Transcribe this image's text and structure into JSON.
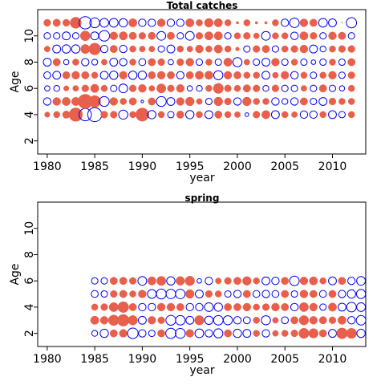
{
  "chart_data": [
    {
      "type": "scatter",
      "subtype": "residual-bubble",
      "title": "Total catches",
      "xlabel": "year",
      "ylabel": "Age",
      "xlim": [
        1979,
        2013.5
      ],
      "ylim": [
        1,
        12
      ],
      "x_ticks": [
        1980,
        1985,
        1990,
        1995,
        2000,
        2005,
        2010
      ],
      "y_ticks": [
        2,
        4,
        6,
        8,
        10
      ],
      "years": [
        1980,
        1981,
        1982,
        1983,
        1984,
        1985,
        1986,
        1987,
        1988,
        1989,
        1990,
        1991,
        1992,
        1993,
        1994,
        1995,
        1996,
        1997,
        1998,
        1999,
        2000,
        2001,
        2002,
        2003,
        2004,
        2005,
        2006,
        2007,
        2008,
        2009,
        2010,
        2011,
        2012
      ],
      "ages": [
        4,
        5,
        6,
        7,
        8,
        9,
        10,
        11
      ],
      "colors": {
        "positive": "#e8604c",
        "negative": "#0000ee"
      },
      "residuals": {
        "4": [
          0.4,
          0.6,
          0.8,
          2.6,
          -2.2,
          -2.8,
          0.7,
          0.7,
          -1.2,
          0.6,
          2.5,
          -1.0,
          0.6,
          -0.6,
          0.8,
          -1.0,
          0.6,
          -0.9,
          0.8,
          0.6,
          0.5,
          -0.2,
          0.7,
          1.0,
          -0.9,
          0.6,
          0.5,
          -0.8,
          -0.8,
          0.6,
          -0.9,
          -0.6,
          0.6
        ],
        "5": [
          -0.8,
          0.9,
          1.0,
          1.0,
          3.0,
          2.0,
          -1.4,
          0.9,
          0.6,
          0.8,
          -0.1,
          0.8,
          -1.4,
          -0.9,
          0.9,
          1.1,
          0.5,
          -0.6,
          1.1,
          0.7,
          -0.8,
          1.1,
          0.6,
          0.6,
          -0.8,
          -0.5,
          -0.8,
          0.8,
          -0.6,
          -0.9,
          0.7,
          0.6,
          0.6
        ],
        "6": [
          -0.4,
          -0.5,
          0.4,
          0.5,
          0.7,
          1.0,
          0.6,
          -0.6,
          -1.1,
          0.7,
          0.9,
          0.5,
          1.2,
          0.7,
          0.9,
          -0.4,
          -0.5,
          0.6,
          1.5,
          0.7,
          0.6,
          0.8,
          0.7,
          -0.5,
          0.7,
          -0.6,
          -0.6,
          0.5,
          -0.6,
          0.8,
          -0.6,
          -0.4,
          0.6
        ],
        "7": [
          -0.7,
          -0.9,
          0.8,
          0.9,
          0.8,
          0.6,
          -0.9,
          -1.0,
          0.9,
          -1.0,
          -1.0,
          0.8,
          0.9,
          0.8,
          -0.8,
          0.8,
          1.0,
          1.0,
          -1.2,
          0.9,
          0.8,
          0.6,
          0.6,
          -0.9,
          0.5,
          0.9,
          -0.8,
          0.6,
          -0.6,
          0.6,
          0.9,
          -0.6,
          0.7
        ],
        "8": [
          -0.9,
          0.8,
          -0.4,
          0.6,
          -0.8,
          -0.5,
          0.5,
          -0.9,
          -0.8,
          0.6,
          -0.7,
          0.8,
          0.7,
          -0.4,
          0.7,
          0.9,
          -0.6,
          0.6,
          -0.6,
          1.0,
          -1.2,
          0.5,
          -0.6,
          -0.9,
          0.9,
          -0.6,
          0.6,
          -0.6,
          -0.3,
          -0.6,
          0.6,
          -0.6,
          0.8
        ],
        "9": [
          0.5,
          -0.9,
          -1.0,
          -1.0,
          1.2,
          2.0,
          -0.8,
          0.8,
          -0.8,
          0.6,
          0.5,
          0.5,
          -0.6,
          -0.9,
          0.6,
          0.5,
          0.9,
          0.6,
          1.0,
          0.6,
          0.2,
          -0.6,
          0.7,
          0.8,
          -0.6,
          0.6,
          0.7,
          0.9,
          -0.9,
          -0.5,
          0.6,
          0.7,
          0.7
        ],
        "10": [
          -0.6,
          -0.6,
          -0.9,
          -0.6,
          1.4,
          -0.9,
          -1.6,
          0.9,
          1.0,
          0.8,
          0.7,
          0.8,
          -1.1,
          0.8,
          -0.6,
          -1.1,
          0.7,
          1.0,
          1.0,
          -0.6,
          0.6,
          0.7,
          0.5,
          -1.1,
          0.6,
          0.6,
          -0.8,
          1.0,
          0.7,
          -0.6,
          0.9,
          0.8,
          -0.6
        ],
        "11": [
          0.7,
          0.8,
          0.7,
          1.8,
          -2.2,
          -1.4,
          -1.1,
          -1.1,
          -1.0,
          1.0,
          -0.8,
          -0.8,
          0.9,
          -0.8,
          -0.8,
          1.0,
          0.6,
          1.1,
          1.0,
          0.6,
          0.1,
          0.6,
          0.1,
          0.1,
          0.6,
          -0.8,
          -1.3,
          0.9,
          0.8,
          -1.1,
          -0.9,
          0.0,
          -1.5
        ]
      }
    },
    {
      "type": "scatter",
      "subtype": "residual-bubble",
      "title": "spring",
      "xlabel": "year",
      "ylabel": "Age",
      "xlim": [
        1979,
        2013.5
      ],
      "ylim": [
        1,
        12
      ],
      "x_ticks": [
        1980,
        1985,
        1990,
        1995,
        2000,
        2005,
        2010
      ],
      "y_ticks": [
        2,
        4,
        6,
        8,
        10
      ],
      "years": [
        1985,
        1986,
        1987,
        1988,
        1989,
        1990,
        1991,
        1992,
        1993,
        1994,
        1995,
        1996,
        1997,
        1998,
        1999,
        2000,
        2001,
        2002,
        2003,
        2004,
        2005,
        2006,
        2007,
        2008,
        2009,
        2010,
        2011,
        2012,
        2013
      ],
      "ages": [
        2,
        3,
        4,
        5,
        6
      ],
      "colors": {
        "positive": "#e8604c",
        "negative": "#0000ee"
      },
      "residuals": {
        "2": [
          -0.5,
          -1.0,
          0.8,
          0.9,
          -1.6,
          -0.8,
          -0.6,
          0.8,
          -1.5,
          -1.4,
          0.9,
          -1.1,
          -0.8,
          -1.2,
          0.8,
          -1.0,
          -0.9,
          0.6,
          -0.8,
          0.5,
          0.6,
          0.7,
          1.5,
          1.3,
          0.8,
          -0.9,
          1.7,
          1.5,
          -1.0
        ],
        "3": [
          1.0,
          0.9,
          1.6,
          2.0,
          1.3,
          -0.9,
          0.9,
          0.7,
          -1.4,
          -1.3,
          -0.9,
          1.3,
          -1.0,
          -1.3,
          -1.2,
          -0.8,
          -0.7,
          0.6,
          -1.2,
          0.5,
          -0.7,
          0.8,
          1.3,
          0.9,
          0.8,
          0.7,
          1.0,
          -0.8,
          -1.3
        ],
        "4": [
          0.6,
          0.7,
          1.2,
          1.7,
          0.8,
          -0.8,
          -0.8,
          0.9,
          0.9,
          0.8,
          -0.8,
          -0.8,
          -1.1,
          -1.0,
          0.8,
          0.8,
          0.9,
          0.6,
          0.7,
          0.9,
          0.8,
          -0.8,
          1.2,
          0.9,
          -0.6,
          1.0,
          -0.9,
          -1.3,
          -1.1
        ],
        "5": [
          -0.7,
          -0.6,
          0.7,
          0.8,
          0.6,
          0.9,
          -1.1,
          -1.4,
          -1.3,
          -1.3,
          1.1,
          -0.9,
          0.7,
          0.6,
          -0.6,
          -0.8,
          0.8,
          -0.7,
          -0.8,
          -0.7,
          0.8,
          -0.6,
          0.9,
          0.8,
          -0.7,
          0.8,
          -0.8,
          -1.0,
          -1.2
        ],
        "6": [
          -0.6,
          -0.6,
          0.8,
          0.8,
          0.7,
          -1.1,
          1.0,
          1.2,
          -1.0,
          1.1,
          1.3,
          -0.3,
          -0.8,
          0.5,
          0.7,
          0.8,
          1.1,
          0.6,
          -0.9,
          -0.8,
          0.8,
          -1.3,
          0.9,
          1.0,
          0.6,
          -0.9,
          0.8,
          -0.8,
          -1.1
        ]
      }
    }
  ]
}
